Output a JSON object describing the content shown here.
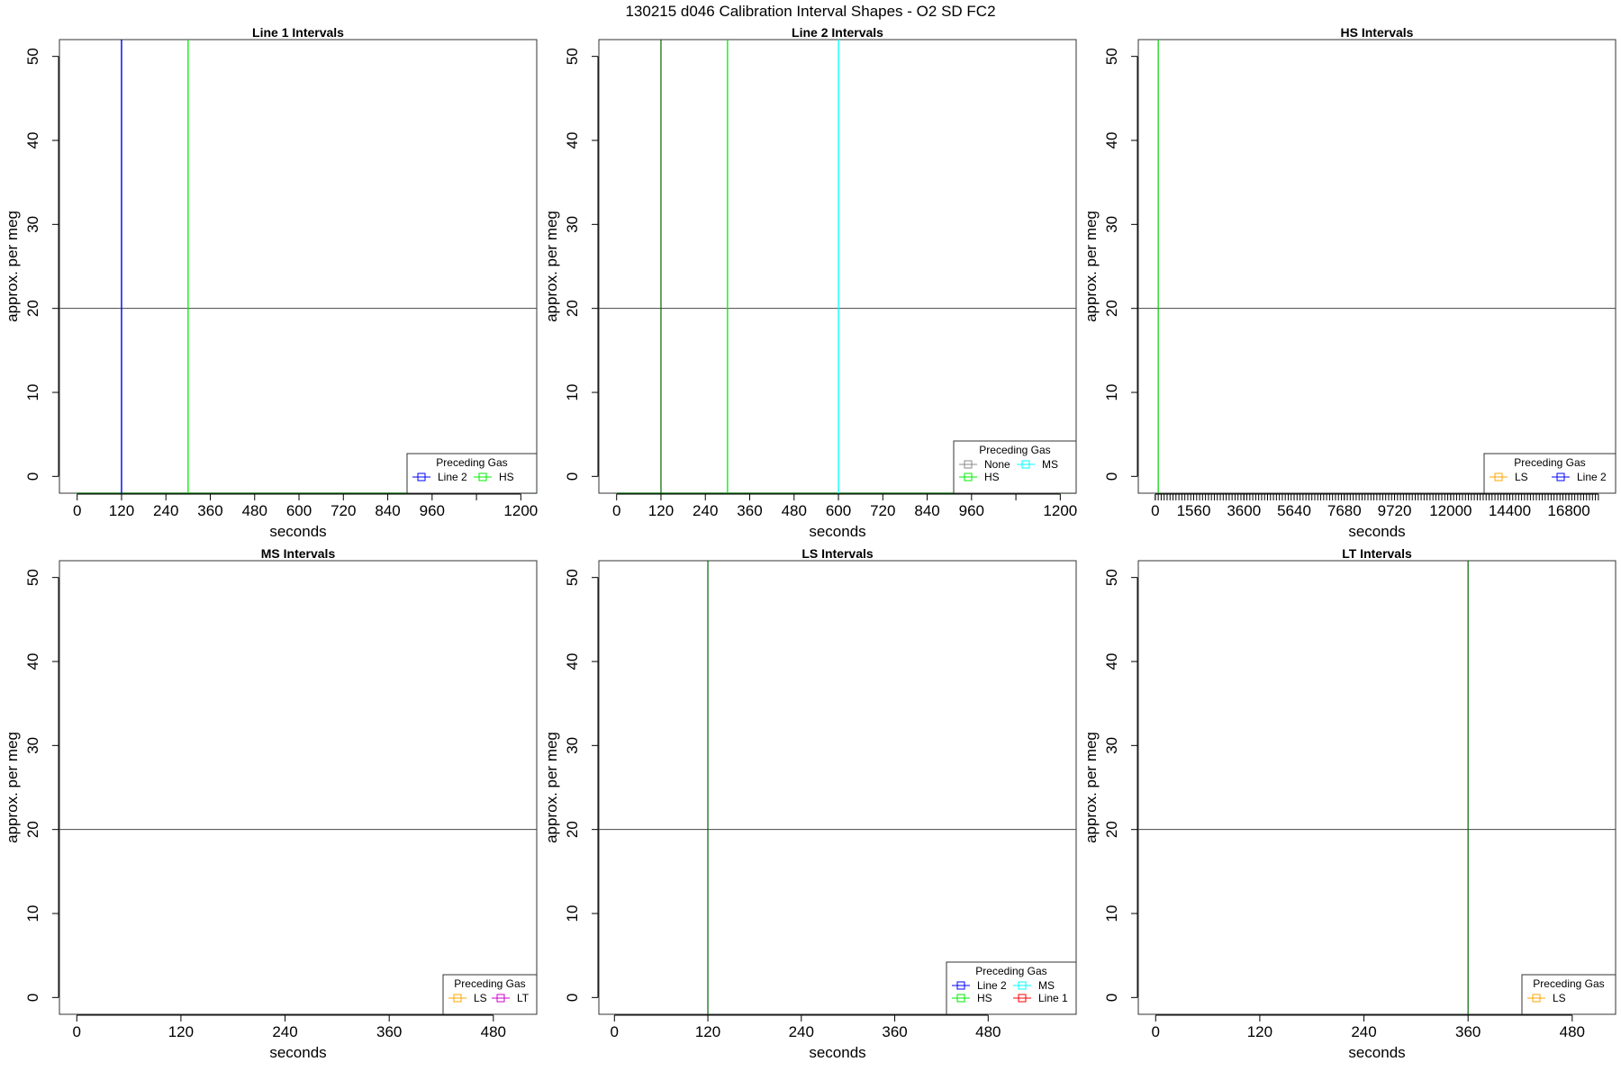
{
  "figure_title": "130215   d046   Calibration Interval Shapes - O2 SD FC2",
  "chart_data": [
    {
      "type": "line",
      "title": "Line 1 Intervals",
      "xlabel": "seconds",
      "ylabel": "approx. per meg",
      "xlim": [
        -48,
        1243
      ],
      "ylim": [
        -2,
        52
      ],
      "x_ticks": [
        0,
        120,
        240,
        360,
        480,
        600,
        720,
        840,
        960,
        1200
      ],
      "x_minor_ticks": [
        1080
      ],
      "y_ticks": [
        0,
        10,
        20,
        30,
        40,
        50
      ],
      "hline": 20,
      "legend": {
        "title": "Preceding Gas",
        "placement": "bottom-right",
        "entries": [
          {
            "label": "Line 2",
            "color": "#0000ff"
          },
          {
            "label": "HS",
            "color": "#00ee00"
          }
        ]
      },
      "series": [
        {
          "label": "Line 2",
          "color": "#0000ff",
          "segments": [
            [
              [
                120,
                -2
              ],
              [
                120,
                52
              ]
            ]
          ]
        },
        {
          "label": "HS",
          "color": "#00ee00",
          "segments": [
            [
              [
                300,
                -2
              ],
              [
                300,
                52
              ]
            ]
          ]
        }
      ],
      "reference_lines": [
        {
          "color": "#006400",
          "segments": [
            [
              [
                120,
                -2
              ],
              [
                120,
                52
              ]
            ],
            [
              [
                -2,
                -2
              ],
              [
                1243,
                -2
              ]
            ]
          ]
        }
      ]
    },
    {
      "type": "line",
      "title": "Line 2 Intervals",
      "xlabel": "seconds",
      "ylabel": "approx. per meg",
      "xlim": [
        -48,
        1243
      ],
      "ylim": [
        -2,
        52
      ],
      "x_ticks": [
        0,
        120,
        240,
        360,
        480,
        600,
        720,
        840,
        960,
        1200
      ],
      "x_minor_ticks": [
        1080
      ],
      "y_ticks": [
        0,
        10,
        20,
        30,
        40,
        50
      ],
      "hline": 20,
      "legend": {
        "title": "Preceding Gas",
        "placement": "bottom-right",
        "entries": [
          {
            "label": "None",
            "color": "#888888"
          },
          {
            "label": "MS",
            "color": "#00ffff"
          },
          {
            "label": "HS",
            "color": "#00ee00"
          }
        ]
      },
      "series": [
        {
          "label": "HS",
          "color": "#00ee00",
          "segments": [
            [
              [
                300,
                -2
              ],
              [
                300,
                52
              ]
            ]
          ]
        },
        {
          "label": "MS",
          "color": "#00ffff",
          "segments": [
            [
              [
                600,
                -2
              ],
              [
                600,
                52
              ]
            ]
          ]
        }
      ],
      "reference_lines": [
        {
          "color": "#006400",
          "segments": [
            [
              [
                120,
                -2
              ],
              [
                120,
                52
              ]
            ],
            [
              [
                0,
                -2
              ],
              [
                1243,
                -2
              ]
            ]
          ]
        }
      ]
    },
    {
      "type": "line",
      "title": "HS Intervals",
      "xlabel": "seconds",
      "ylabel": "approx. per meg",
      "xlim": [
        -690,
        18700
      ],
      "ylim": [
        -2,
        52
      ],
      "x_ticks": [
        0,
        1560,
        3600,
        5640,
        7680,
        9720,
        12000,
        14400,
        16800
      ],
      "x_minor_tick_step": 120,
      "x_minor_tick_range": [
        0,
        18000
      ],
      "y_ticks": [
        0,
        10,
        20,
        30,
        40,
        50
      ],
      "hline": 20,
      "legend": {
        "title": "Preceding Gas",
        "placement": "bottom-right",
        "entries": [
          {
            "label": "LS",
            "color": "#ffa500"
          },
          {
            "label": "Line 2",
            "color": "#0000ff"
          }
        ]
      },
      "series": [],
      "reference_lines": [
        {
          "color": "#00cc00",
          "segments": [
            [
              [
                120,
                -2
              ],
              [
                120,
                52
              ]
            ]
          ]
        }
      ]
    },
    {
      "type": "line",
      "title": "MS Intervals",
      "xlabel": "seconds",
      "ylabel": "approx. per meg",
      "xlim": [
        -20,
        530
      ],
      "ylim": [
        -2,
        52
      ],
      "x_ticks": [
        0,
        120,
        240,
        360,
        480
      ],
      "y_ticks": [
        0,
        10,
        20,
        30,
        40,
        50
      ],
      "hline": 20,
      "legend": {
        "title": "Preceding Gas",
        "placement": "bottom-right",
        "entries": [
          {
            "label": "LS",
            "color": "#ffa500"
          },
          {
            "label": "LT",
            "color": "#cc00cc"
          }
        ]
      },
      "series": [],
      "reference_lines": []
    },
    {
      "type": "line",
      "title": "LS Intervals",
      "xlabel": "seconds",
      "ylabel": "approx. per meg",
      "xlim": [
        -20,
        593
      ],
      "ylim": [
        -2,
        52
      ],
      "x_ticks": [
        0,
        120,
        240,
        360,
        480
      ],
      "y_ticks": [
        0,
        10,
        20,
        30,
        40,
        50
      ],
      "hline": 20,
      "legend": {
        "title": "Preceding Gas",
        "placement": "bottom-right",
        "entries": [
          {
            "label": "Line 2",
            "color": "#0000ff"
          },
          {
            "label": "MS",
            "color": "#00ffff"
          },
          {
            "label": "HS",
            "color": "#00ee00"
          },
          {
            "label": "Line 1",
            "color": "#ff0000"
          }
        ]
      },
      "series": [],
      "reference_lines": [
        {
          "color": "#006400",
          "segments": [
            [
              [
                120,
                -2
              ],
              [
                120,
                52
              ]
            ]
          ]
        }
      ]
    },
    {
      "type": "line",
      "title": "LT Intervals",
      "xlabel": "seconds",
      "ylabel": "approx. per meg",
      "xlim": [
        -20,
        530
      ],
      "ylim": [
        -2,
        52
      ],
      "x_ticks": [
        0,
        120,
        240,
        360,
        480
      ],
      "y_ticks": [
        0,
        10,
        20,
        30,
        40,
        50
      ],
      "hline": 20,
      "legend": {
        "title": "Preceding Gas",
        "placement": "bottom-right",
        "entries": [
          {
            "label": "LS",
            "color": "#ffa500"
          }
        ]
      },
      "series": [],
      "reference_lines": [
        {
          "color": "#006400",
          "segments": [
            [
              [
                360,
                -2
              ],
              [
                360,
                52
              ]
            ]
          ]
        }
      ]
    }
  ]
}
